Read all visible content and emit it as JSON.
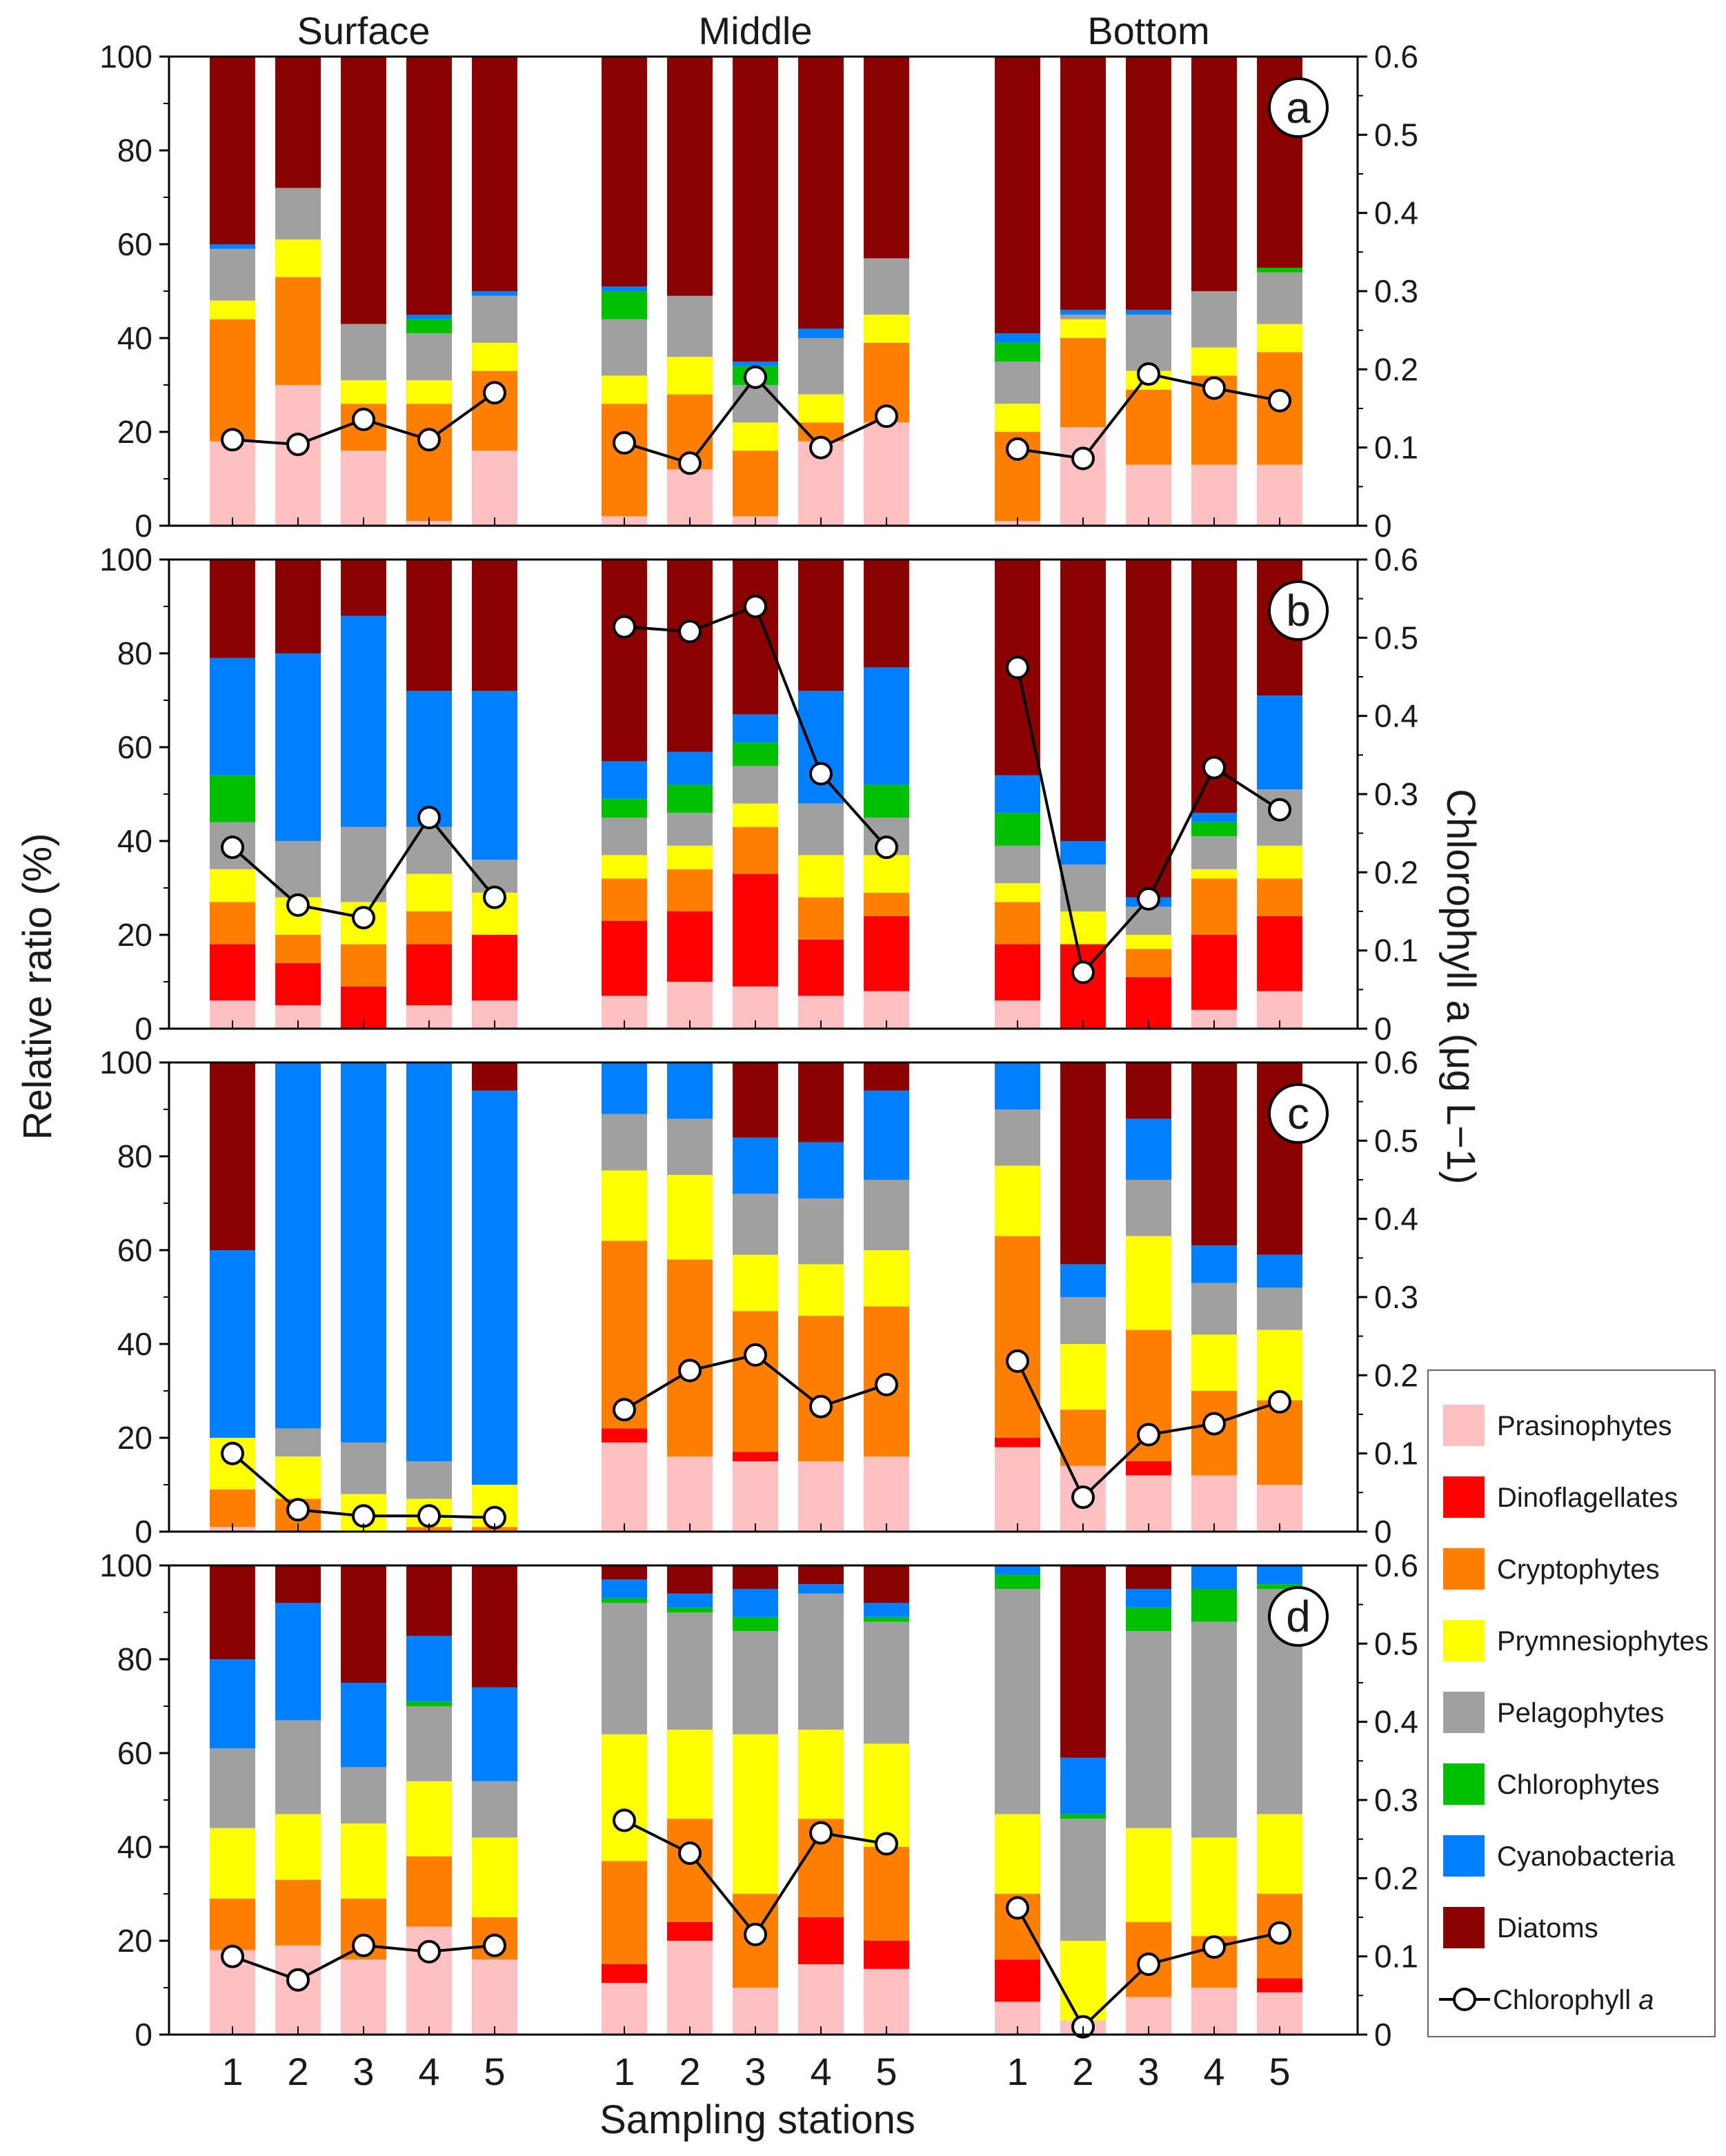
{
  "chart_data": {
    "type": "bar",
    "stacked": true,
    "xlabel": "Sampling stations",
    "ylabel": "Relative ratio (%)",
    "ylabel_right": "Chlorophyll a (μg L−1)",
    "ylim": [
      0,
      100
    ],
    "ylim_right": [
      0,
      0.6
    ],
    "yticks": [
      "0",
      "20",
      "40",
      "60",
      "80",
      "100"
    ],
    "yticks_right": [
      "0",
      "0.1",
      "0.2",
      "0.3",
      "0.4",
      "0.5",
      "0.6"
    ],
    "groups": [
      "Surface",
      "Middle",
      "Bottom"
    ],
    "stations": [
      "1",
      "2",
      "3",
      "4",
      "5"
    ],
    "components": [
      "Prasinophytes",
      "Dinoflagellates",
      "Cryptophytes",
      "Prymnesiophytes",
      "Pelagophytes",
      "Chlorophytes",
      "Cyanobacteria",
      "Diatoms"
    ],
    "colors": {
      "Prasinophytes": "#ffc0c4",
      "Dinoflagellates": "#ff0000",
      "Cryptophytes": "#ff8000",
      "Prymnesiophytes": "#ffff00",
      "Pelagophytes": "#a0a0a0",
      "Chlorophytes": "#00c000",
      "Cyanobacteria": "#0080ff",
      "Diatoms": "#8b0000"
    },
    "legend": {
      "items": [
        "Prasinophytes",
        "Dinoflagellates",
        "Cryptophytes",
        "Prymnesiophytes",
        "Pelagophytes",
        "Chlorophytes",
        "Cyanobacteria",
        "Diatoms"
      ],
      "line_label": "Chlorophyll ",
      "line_label_italic": "a",
      "placement": "right"
    },
    "panels": [
      {
        "label": "a",
        "bars": [
          [
            [
              18,
              0,
              26,
              4,
              11,
              0,
              1,
              40
            ],
            [
              30,
              0,
              23,
              8,
              11,
              0,
              0,
              28
            ],
            [
              16,
              0,
              10,
              5,
              12,
              0,
              0,
              57
            ],
            [
              1,
              0,
              25,
              5,
              10,
              3,
              1,
              55
            ],
            [
              16,
              0,
              17,
              6,
              10,
              0,
              1,
              50
            ]
          ],
          [
            [
              2,
              0,
              24,
              6,
              12,
              6,
              1,
              49
            ],
            [
              12,
              0,
              16,
              8,
              13,
              0,
              0,
              51
            ],
            [
              2,
              0,
              14,
              6,
              8,
              4,
              1,
              65
            ],
            [
              18,
              0,
              4,
              6,
              12,
              0,
              2,
              58
            ],
            [
              22,
              0,
              17,
              6,
              12,
              0,
              0,
              43
            ]
          ],
          [
            [
              1,
              0,
              19,
              6,
              9,
              4,
              2,
              59
            ],
            [
              21,
              0,
              19,
              4,
              1,
              0,
              1,
              54
            ],
            [
              13,
              0,
              16,
              4,
              12,
              0,
              1,
              54
            ],
            [
              13,
              0,
              19,
              6,
              12,
              0,
              0,
              50
            ],
            [
              13,
              0,
              24,
              6,
              11,
              1,
              0,
              45
            ]
          ]
        ],
        "chl": [
          [
            0.11,
            0.104,
            0.136,
            0.11,
            0.17
          ],
          [
            0.106,
            0.08,
            0.19,
            0.1,
            0.14
          ],
          [
            0.098,
            0.086,
            0.194,
            0.176,
            0.16
          ]
        ]
      },
      {
        "label": "b",
        "bars": [
          [
            [
              6,
              12,
              9,
              7,
              10,
              10,
              25,
              21
            ],
            [
              5,
              9,
              6,
              8,
              12,
              0,
              40,
              20
            ],
            [
              0,
              9,
              9,
              9,
              16,
              0,
              45,
              12
            ],
            [
              5,
              13,
              7,
              8,
              10,
              0,
              29,
              28
            ],
            [
              6,
              14,
              0,
              9,
              7,
              0,
              36,
              28
            ]
          ],
          [
            [
              7,
              16,
              9,
              5,
              8,
              4,
              8,
              43
            ],
            [
              10,
              15,
              9,
              5,
              7,
              6,
              7,
              41
            ],
            [
              9,
              24,
              10,
              5,
              8,
              5,
              6,
              33
            ],
            [
              7,
              12,
              9,
              9,
              11,
              0,
              24,
              28
            ],
            [
              8,
              16,
              5,
              8,
              8,
              7,
              25,
              23
            ]
          ],
          [
            [
              6,
              12,
              9,
              4,
              8,
              7,
              8,
              46
            ],
            [
              0,
              18,
              0,
              7,
              10,
              0,
              5,
              60
            ],
            [
              0,
              11,
              6,
              3,
              6,
              0,
              2,
              72
            ],
            [
              4,
              16,
              12,
              2,
              7,
              3,
              2,
              54
            ],
            [
              8,
              16,
              8,
              7,
              12,
              0,
              20,
              29
            ]
          ]
        ],
        "chl": [
          [
            0.232,
            0.158,
            0.142,
            0.27,
            0.168
          ],
          [
            0.514,
            0.508,
            0.54,
            0.326,
            0.232
          ],
          [
            0.462,
            0.072,
            0.166,
            0.334,
            0.28
          ]
        ]
      },
      {
        "label": "c",
        "bars": [
          [
            [
              1,
              0,
              8,
              11,
              0,
              0,
              40,
              40
            ],
            [
              0,
              0,
              7,
              9,
              6,
              0,
              78,
              0
            ],
            [
              0,
              0,
              0,
              8,
              11,
              0,
              81,
              0
            ],
            [
              0,
              0,
              1,
              6,
              8,
              0,
              85,
              0
            ],
            [
              0,
              0,
              1,
              9,
              0,
              0,
              84,
              6
            ]
          ],
          [
            [
              19,
              3,
              40,
              15,
              12,
              0,
              11,
              0
            ],
            [
              16,
              0,
              42,
              18,
              12,
              0,
              12,
              0
            ],
            [
              15,
              2,
              30,
              12,
              13,
              0,
              12,
              16
            ],
            [
              15,
              0,
              31,
              11,
              14,
              0,
              12,
              17
            ],
            [
              16,
              0,
              32,
              12,
              15,
              0,
              19,
              6
            ]
          ],
          [
            [
              18,
              2,
              43,
              15,
              12,
              0,
              10,
              0
            ],
            [
              14,
              0,
              12,
              14,
              10,
              0,
              7,
              43
            ],
            [
              12,
              3,
              28,
              20,
              12,
              0,
              13,
              12
            ],
            [
              12,
              0,
              18,
              12,
              11,
              0,
              8,
              39
            ],
            [
              10,
              0,
              18,
              15,
              9,
              0,
              7,
              41
            ]
          ]
        ],
        "chl": [
          [
            0.1,
            0.028,
            0.02,
            0.02,
            0.018
          ],
          [
            0.156,
            0.206,
            0.226,
            0.16,
            0.188
          ],
          [
            0.218,
            0.044,
            0.124,
            0.138,
            0.166
          ]
        ]
      },
      {
        "label": "d",
        "bars": [
          [
            [
              18,
              0,
              11,
              15,
              17,
              0,
              19,
              20
            ],
            [
              19,
              0,
              14,
              14,
              20,
              0,
              25,
              8
            ],
            [
              16,
              0,
              13,
              16,
              12,
              0,
              18,
              25
            ],
            [
              23,
              0,
              15,
              16,
              16,
              1,
              14,
              15
            ],
            [
              16,
              0,
              9,
              17,
              12,
              0,
              20,
              26
            ]
          ],
          [
            [
              11,
              4,
              22,
              27,
              28,
              1,
              4,
              3
            ],
            [
              20,
              4,
              22,
              19,
              25,
              1,
              3,
              6
            ],
            [
              10,
              0,
              20,
              34,
              22,
              3,
              6,
              5
            ],
            [
              15,
              10,
              21,
              19,
              29,
              0,
              2,
              4
            ],
            [
              14,
              6,
              20,
              22,
              26,
              1,
              3,
              8
            ]
          ],
          [
            [
              7,
              9,
              14,
              17,
              48,
              3,
              2,
              0
            ],
            [
              3,
              0,
              0,
              17,
              26,
              1,
              12,
              41
            ],
            [
              8,
              0,
              16,
              20,
              42,
              5,
              4,
              5
            ],
            [
              10,
              0,
              11,
              21,
              46,
              7,
              5,
              0
            ],
            [
              9,
              3,
              18,
              17,
              48,
              1,
              4,
              0
            ]
          ]
        ],
        "chl": [
          [
            0.1,
            0.07,
            0.114,
            0.106,
            0.114
          ],
          [
            0.274,
            0.232,
            0.128,
            0.258,
            0.244
          ],
          [
            0.162,
            0.01,
            0.09,
            0.112,
            0.13
          ]
        ]
      }
    ]
  }
}
